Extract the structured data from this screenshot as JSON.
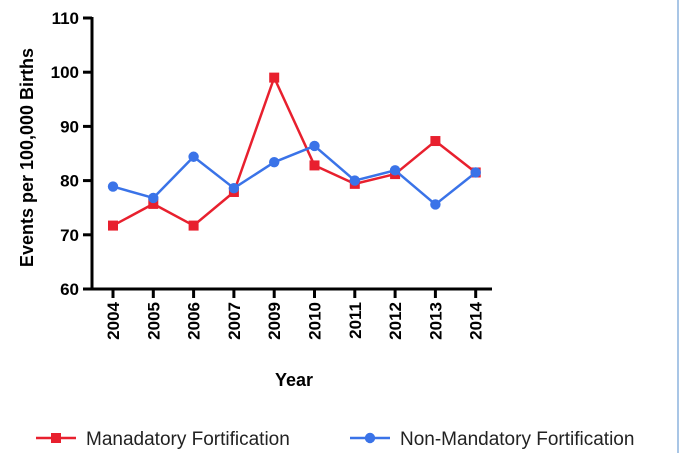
{
  "chart_data": {
    "type": "line",
    "title": "",
    "xlabel": "Year",
    "ylabel": "Events per 100,000 Births",
    "categories": [
      "2004",
      "2005",
      "2006",
      "2007",
      "2009",
      "2010",
      "2011",
      "2012",
      "2013",
      "2014"
    ],
    "ylim": [
      60,
      110
    ],
    "yticks": [
      "60",
      "70",
      "80",
      "90",
      "100",
      "110"
    ],
    "grid": false,
    "legend_position": "bottom",
    "series": [
      {
        "name": "Manadatory Fortification",
        "color": "#e8202e",
        "marker": "square",
        "values": [
          71.7,
          75.7,
          71.7,
          77.9,
          99.0,
          82.8,
          79.4,
          81.2,
          87.3,
          81.5
        ]
      },
      {
        "name": "Non-Mandatory Fortification",
        "color": "#3a73e8",
        "marker": "circle",
        "values": [
          78.9,
          76.8,
          84.4,
          78.6,
          83.4,
          86.4,
          80.0,
          81.9,
          75.6,
          81.5
        ]
      }
    ]
  }
}
